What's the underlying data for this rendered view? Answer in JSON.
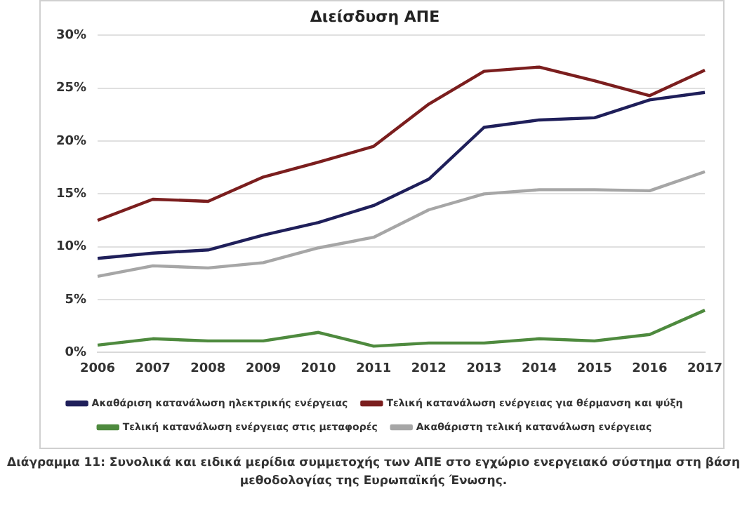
{
  "chart_data": {
    "type": "line",
    "title": "Διείσδυση ΑΠΕ",
    "categories": [
      "2006",
      "2007",
      "2008",
      "2009",
      "2010",
      "2011",
      "2012",
      "2013",
      "2014",
      "2015",
      "2016",
      "2017"
    ],
    "series": [
      {
        "name": "Ακαθάριση κατανάλωση ηλεκτρικής ενέργειας",
        "color": "#1f1f5a",
        "values": [
          8.9,
          9.4,
          9.7,
          11.1,
          12.3,
          13.9,
          16.4,
          21.3,
          22.0,
          22.2,
          23.9,
          24.6
        ]
      },
      {
        "name": "Τελική κατανάλωση ενέργειας για θέρμανση και ψύξη",
        "color": "#7b1e1e",
        "values": [
          12.5,
          14.5,
          14.3,
          16.6,
          18.0,
          19.5,
          23.5,
          26.6,
          27.0,
          25.7,
          24.3,
          26.7
        ]
      },
      {
        "name": "Τελική κατανάλωση ενέργειας στις μεταφορές",
        "color": "#4e8a3e",
        "values": [
          0.7,
          1.3,
          1.1,
          1.1,
          1.9,
          0.6,
          0.9,
          0.9,
          1.3,
          1.1,
          1.7,
          4.0
        ]
      },
      {
        "name": "Ακαθάριστη τελική κατανάλωση ενέργειας",
        "color": "#a6a6a6",
        "values": [
          7.2,
          8.2,
          8.0,
          8.5,
          9.9,
          10.9,
          13.5,
          15.0,
          15.4,
          15.4,
          15.3,
          17.1
        ]
      }
    ],
    "ylim": [
      0,
      30
    ],
    "yticks": [
      {
        "value": 0,
        "label": "0%"
      },
      {
        "value": 5,
        "label": "5%"
      },
      {
        "value": 10,
        "label": "10%"
      },
      {
        "value": 15,
        "label": "15%"
      },
      {
        "value": 20,
        "label": "20%"
      },
      {
        "value": 25,
        "label": "25%"
      },
      {
        "value": 30,
        "label": "30%"
      }
    ],
    "grid": "y",
    "legend": "bottom",
    "marker": "none",
    "line_style": "solid",
    "annotations": [
      "Διάγραμμα 11: Συνολικά και ειδικά μερίδια συμμετοχής των ΑΠΕ στο εγχώριο ενεργειακό σύστημα στη βάση μεθοδολογίας της Ευρωπαϊκής Ένωσης."
    ]
  }
}
